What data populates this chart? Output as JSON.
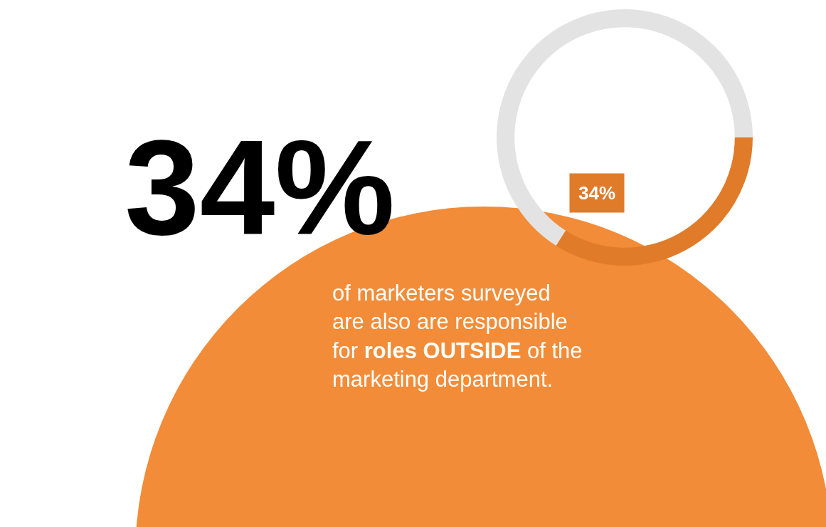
{
  "chart_data": {
    "type": "donut",
    "title": "34%",
    "categories": [
      null,
      null
    ],
    "values": [
      34,
      66
    ],
    "colors": [
      "#e07b2a",
      "#e3e3e3"
    ],
    "value_labels": [
      "34%",
      null
    ],
    "annotations": [
      "of marketers surveyed are also are responsible for ",
      "roles OUTSIDE",
      " of the marketing department."
    ],
    "legend": false
  }
}
